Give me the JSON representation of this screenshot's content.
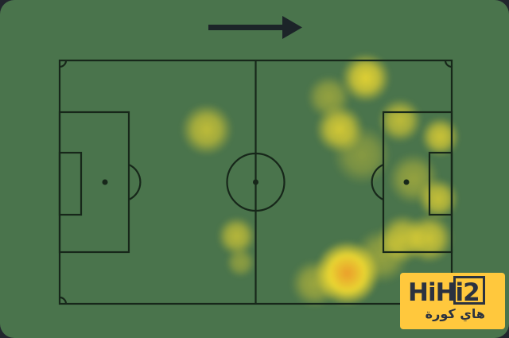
{
  "canvas": {
    "grass_color": "#4a744c",
    "outside_background": "#22262e",
    "line_color": "#17271a"
  },
  "icons": {
    "direction_arrow": "right-arrow",
    "arrow_color": "#1c2428"
  },
  "logo": {
    "brand_prefix": "HiHi",
    "brand_suffix": "2",
    "subtitle_arabic": "هاي كورة",
    "background": "#ffc83d",
    "text_color": "#2b3240"
  },
  "chart_data": {
    "type": "heatmap",
    "subtype": "football-pitch-player-heatmap",
    "title": "",
    "direction_of_play": "left-to-right",
    "x_range": [
      0,
      100
    ],
    "y_range": [
      0,
      100
    ],
    "colors": {
      "heat_rgb": "246,222,48",
      "core_rgb": "240,158,42"
    },
    "points": [
      {
        "x": 37.5,
        "y": 28.4,
        "intensity": 0.7,
        "radius": 28
      },
      {
        "x": 45.2,
        "y": 72.2,
        "intensity": 0.65,
        "radius": 21
      },
      {
        "x": 46.2,
        "y": 83.0,
        "intensity": 0.35,
        "radius": 16
      },
      {
        "x": 78.1,
        "y": 7.2,
        "intensity": 0.95,
        "radius": 27
      },
      {
        "x": 68.6,
        "y": 15.0,
        "intensity": 0.4,
        "radius": 24
      },
      {
        "x": 71.4,
        "y": 28.4,
        "intensity": 0.85,
        "radius": 26
      },
      {
        "x": 77.1,
        "y": 38.9,
        "intensity": 0.3,
        "radius": 32
      },
      {
        "x": 86.8,
        "y": 24.8,
        "intensity": 0.7,
        "radius": 24
      },
      {
        "x": 97.0,
        "y": 31.4,
        "intensity": 0.8,
        "radius": 21
      },
      {
        "x": 90.3,
        "y": 48.7,
        "intensity": 0.4,
        "radius": 28
      },
      {
        "x": 96.6,
        "y": 56.9,
        "intensity": 0.75,
        "radius": 22
      },
      {
        "x": 94.3,
        "y": 73.2,
        "intensity": 0.8,
        "radius": 26
      },
      {
        "x": 87.6,
        "y": 73.2,
        "intensity": 0.75,
        "radius": 26
      },
      {
        "x": 82.2,
        "y": 80.4,
        "intensity": 0.4,
        "radius": 30
      },
      {
        "x": 73.4,
        "y": 87.3,
        "intensity": 1.0,
        "radius": 34,
        "core": "orange"
      },
      {
        "x": 65.1,
        "y": 91.8,
        "intensity": 0.45,
        "radius": 26
      }
    ]
  }
}
